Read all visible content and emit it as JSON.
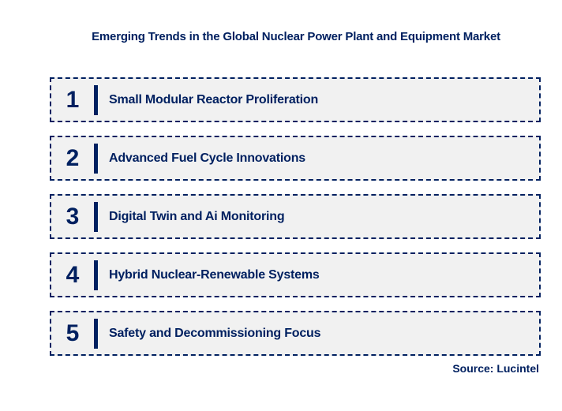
{
  "title": "Emerging Trends in the Global Nuclear Power Plant and Equipment Market",
  "colors": {
    "navy": "#002060",
    "box_background": "#f1f1f1",
    "page_background": "#ffffff"
  },
  "items": [
    {
      "number": "1",
      "label": "Small Modular Reactor Proliferation"
    },
    {
      "number": "2",
      "label": "Advanced Fuel Cycle Innovations"
    },
    {
      "number": "3",
      "label": "Digital Twin and Ai Monitoring"
    },
    {
      "number": "4",
      "label": "Hybrid Nuclear-Renewable Systems"
    },
    {
      "number": "5",
      "label": "Safety and Decommissioning Focus"
    }
  ],
  "source": "Source: Lucintel"
}
